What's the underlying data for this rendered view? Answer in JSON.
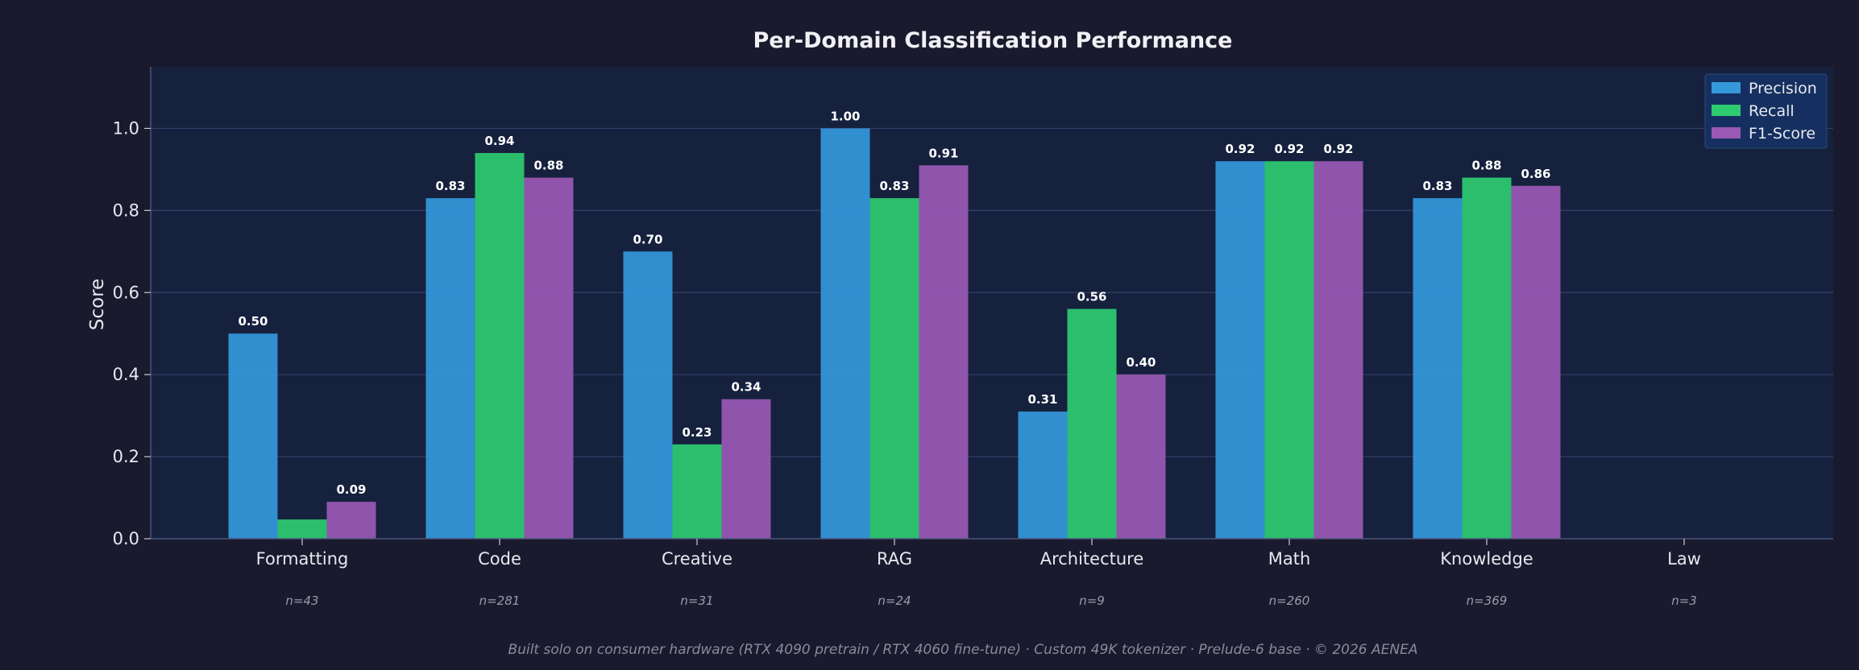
{
  "chart_data": {
    "type": "bar",
    "title": "Per-Domain Classification Performance",
    "ylabel": "Score",
    "xlabel": "",
    "ylim": [
      0,
      1.15
    ],
    "yticks": [
      "0.0",
      "0.2",
      "0.4",
      "0.6",
      "0.8",
      "1.0"
    ],
    "grid": true,
    "legend_position": "top-right",
    "categories": [
      "Formatting",
      "Code",
      "Creative",
      "RAG",
      "Architecture",
      "Math",
      "Knowledge",
      "Law"
    ],
    "sample_counts": [
      "n=43",
      "n=281",
      "n=31",
      "n=24",
      "n=9",
      "n=260",
      "n=369",
      "n=3"
    ],
    "series": [
      {
        "name": "Precision",
        "color": "#3498db",
        "values": [
          0.5,
          0.83,
          0.7,
          1.0,
          0.31,
          0.92,
          0.83,
          null
        ],
        "labels": [
          "0.50",
          "0.83",
          "0.70",
          "1.00",
          "0.31",
          "0.92",
          "0.83",
          ""
        ]
      },
      {
        "name": "Recall",
        "color": "#2ecc71",
        "values": [
          0.047,
          0.94,
          0.23,
          0.83,
          0.56,
          0.92,
          0.88,
          null
        ],
        "labels": [
          "",
          "0.94",
          "0.23",
          "0.83",
          "0.56",
          "0.92",
          "0.88",
          ""
        ]
      },
      {
        "name": "F1-Score",
        "color": "#9b59b6",
        "values": [
          0.09,
          0.88,
          0.34,
          0.91,
          0.4,
          0.92,
          0.86,
          null
        ],
        "labels": [
          "0.09",
          "0.88",
          "0.34",
          "0.91",
          "0.40",
          "0.92",
          "0.86",
          ""
        ]
      }
    ]
  },
  "footer": "Built solo on consumer hardware (RTX 4090 pretrain / RTX 4060 fine-tune)  ·  Custom 49K tokenizer  ·  Prelude-6 base  ·  © 2026 AENEA"
}
